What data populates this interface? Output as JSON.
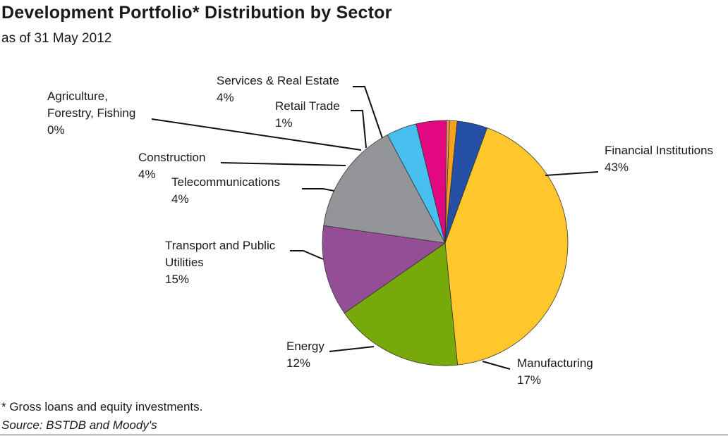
{
  "chart_data": {
    "type": "pie",
    "title": "Development Portfolio* Distribution by Sector",
    "subtitle": "as of 31 May 2012",
    "start_angle_deg": -70,
    "slices": [
      {
        "name": "Financial Institutions",
        "name_lines": [
          "Financial Institutions"
        ],
        "value": 43,
        "value_label": "43%",
        "color": "#FFC72C"
      },
      {
        "name": "Manufacturing",
        "name_lines": [
          "Manufacturing"
        ],
        "value": 17,
        "value_label": "17%",
        "color": "#78A90A"
      },
      {
        "name": "Energy",
        "name_lines": [
          "Energy"
        ],
        "value": 12,
        "value_label": "12%",
        "color": "#944E96"
      },
      {
        "name": "Transport and Public Utilities",
        "name_lines": [
          "Transport and Public",
          "Utilities"
        ],
        "value": 15,
        "value_label": "15%",
        "color": "#939598"
      },
      {
        "name": "Telecommunications",
        "name_lines": [
          "Telecommunications"
        ],
        "value": 4,
        "value_label": "4%",
        "color": "#47C0F0"
      },
      {
        "name": "Construction",
        "name_lines": [
          "Construction"
        ],
        "value": 4,
        "value_label": "4%",
        "color": "#E2087F"
      },
      {
        "name": "Agriculture, Forestry, Fishing",
        "name_lines": [
          "Agriculture,",
          "Forestry, Fishing"
        ],
        "value": 0.4,
        "value_label": "0%",
        "color": "#F58E5E"
      },
      {
        "name": "Retail Trade",
        "name_lines": [
          "Retail Trade"
        ],
        "value": 1,
        "value_label": "1%",
        "color": "#F7A21B"
      },
      {
        "name": "Services & Real Estate",
        "name_lines": [
          "Services & Real Estate"
        ],
        "value": 4,
        "value_label": "4%",
        "color": "#2550A6"
      }
    ]
  },
  "notes": {
    "footnote": "* Gross loans and equity investments.",
    "source": "Source: BSTDB and Moody's"
  }
}
